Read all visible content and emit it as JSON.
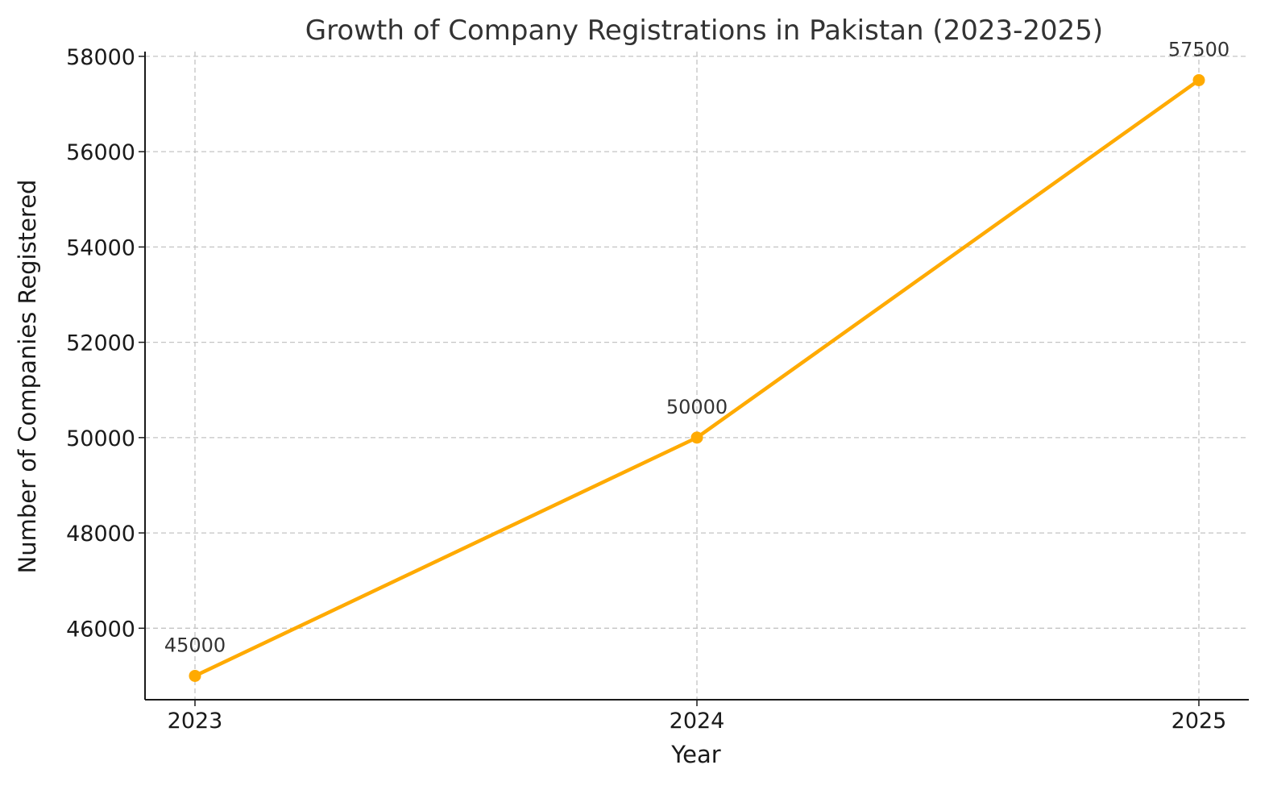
{
  "chart_data": {
    "type": "line",
    "title": "Growth of Company Registrations in Pakistan (2023-2025)",
    "xlabel": "Year",
    "ylabel": "Number of Companies Registered",
    "categories": [
      "2023",
      "2024",
      "2025"
    ],
    "series": [
      {
        "values": [
          45000,
          50000,
          57500
        ],
        "color": "#FFAA00",
        "marker": "circle"
      }
    ],
    "data_labels": [
      "45000",
      "50000",
      "57500"
    ],
    "ylim": [
      44500,
      58100
    ],
    "yticks": [
      46000,
      48000,
      50000,
      52000,
      54000,
      56000,
      58000
    ],
    "ytick_labels": [
      "46000",
      "48000",
      "50000",
      "52000",
      "54000",
      "56000",
      "58000"
    ],
    "grid": true,
    "grid_style": "dashed",
    "legend": "none"
  }
}
